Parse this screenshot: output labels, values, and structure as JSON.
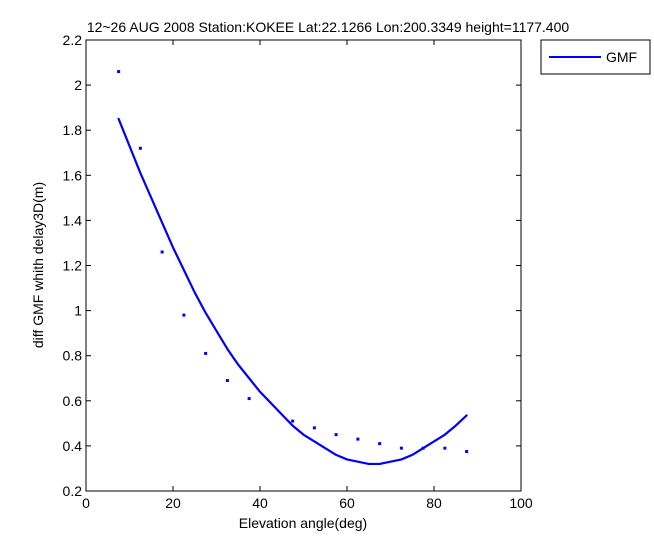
{
  "chart_data": {
    "type": "line",
    "title": "12~26 AUG 2008 Station:KOKEE Lat:22.1266 Lon:200.3349 height=1177.400",
    "xlabel": "Elevation angle(deg)",
    "ylabel": "diff GMF whith delay3D(m)",
    "xlim": [
      0,
      100
    ],
    "ylim": [
      0.2,
      2.2
    ],
    "x_ticks": [
      0,
      20,
      40,
      60,
      80,
      100
    ],
    "y_ticks": [
      0.2,
      0.4,
      0.6,
      0.8,
      1,
      1.2,
      1.4,
      1.6,
      1.8,
      2,
      2.2
    ],
    "x_tick_labels": [
      "0",
      "20",
      "40",
      "60",
      "80",
      "100"
    ],
    "y_tick_labels": [
      "0.2",
      "0.4",
      "0.6",
      "0.8",
      "1",
      "1.2",
      "1.4",
      "1.6",
      "1.8",
      "2",
      "2.2"
    ],
    "grid": false,
    "legend_position": "top-right-outside",
    "series": [
      {
        "name": "GMF",
        "kind": "line",
        "color": "#0000ff",
        "x": [
          7.5,
          10,
          12.5,
          15,
          17.5,
          20,
          22.5,
          25,
          27.5,
          30,
          32.5,
          35,
          37.5,
          40,
          42.5,
          45,
          47.5,
          50,
          52.5,
          55,
          57.5,
          60,
          62.5,
          65,
          67.5,
          70,
          72.5,
          75,
          77.5,
          80,
          82.5,
          85,
          87.5
        ],
        "y": [
          1.85,
          1.73,
          1.61,
          1.5,
          1.39,
          1.28,
          1.18,
          1.08,
          0.99,
          0.91,
          0.83,
          0.76,
          0.7,
          0.64,
          0.59,
          0.54,
          0.49,
          0.45,
          0.42,
          0.39,
          0.36,
          0.34,
          0.33,
          0.32,
          0.32,
          0.33,
          0.34,
          0.36,
          0.39,
          0.42,
          0.45,
          0.49,
          0.535
        ]
      },
      {
        "kind": "scatter",
        "color": "#0000ff",
        "x": [
          7.5,
          12.5,
          17.5,
          22.5,
          27.5,
          32.5,
          37.5,
          47.5,
          52.5,
          57.5,
          62.5,
          67.5,
          72.5,
          77.5,
          82.5,
          87.5
        ],
        "y": [
          2.06,
          1.72,
          1.26,
          0.98,
          0.81,
          0.69,
          0.61,
          0.51,
          0.48,
          0.45,
          0.43,
          0.41,
          0.39,
          0.39,
          0.39,
          0.375
        ]
      }
    ]
  }
}
